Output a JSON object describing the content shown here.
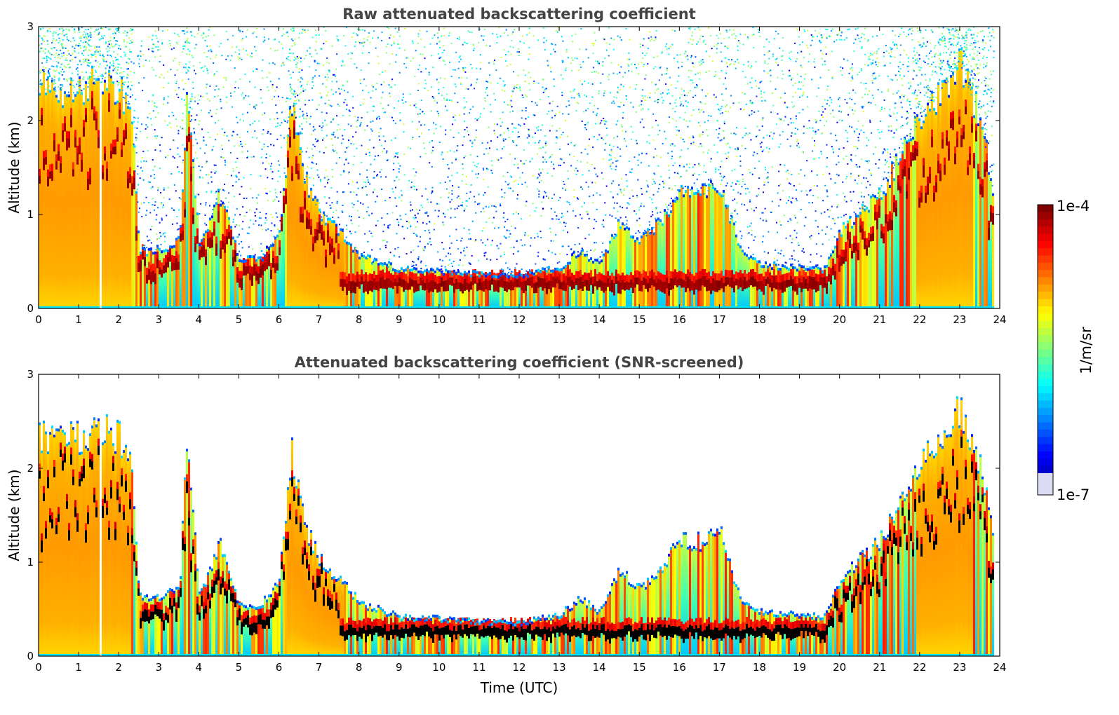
{
  "colors": {
    "jet": [
      "#00007f",
      "#0000ff",
      "#007fff",
      "#00ffff",
      "#7fff7f",
      "#ffff00",
      "#ff7f00",
      "#ff0000",
      "#7f0000"
    ],
    "low_lavender": "#dcdcf5",
    "cloud_core": "#000000",
    "title_color": "#444444",
    "frame": "#000000"
  },
  "colorbar": {
    "label": "1/m/sr",
    "max_label": "1e-4",
    "min_label": "1e-7",
    "scale": "log",
    "range": [
      1e-07,
      0.0001
    ]
  },
  "chart_data": [
    {
      "type": "heatmap",
      "title": "Raw attenuated backscattering coefficient",
      "xlabel": "",
      "ylabel": "Altitude (km)",
      "xlim": [
        0,
        24
      ],
      "ylim": [
        0,
        3
      ],
      "xticks": [
        "0",
        "1",
        "2",
        "3",
        "4",
        "5",
        "6",
        "7",
        "8",
        "9",
        "10",
        "11",
        "12",
        "13",
        "14",
        "15",
        "16",
        "17",
        "18",
        "19",
        "20",
        "21",
        "22",
        "23",
        "24"
      ],
      "yticks": [
        "0",
        "1",
        "2",
        "3"
      ],
      "grid": false,
      "noise_above_cloud": true
    },
    {
      "type": "heatmap",
      "title": "Attenuated backscattering coefficient (SNR-screened)",
      "xlabel": "Time (UTC)",
      "ylabel": "Altitude (km)",
      "xlim": [
        0,
        24
      ],
      "ylim": [
        0,
        3
      ],
      "xticks": [
        "0",
        "1",
        "2",
        "3",
        "4",
        "5",
        "6",
        "7",
        "8",
        "9",
        "10",
        "11",
        "12",
        "13",
        "14",
        "15",
        "16",
        "17",
        "18",
        "19",
        "20",
        "21",
        "22",
        "23",
        "24"
      ],
      "yticks": [
        "0",
        "1",
        "2",
        "3"
      ],
      "grid": false,
      "noise_above_cloud": false
    }
  ],
  "boundary_layer": {
    "description_units": "time (UTC hours) vs. layer top altitude (km)",
    "times": [
      0,
      0.5,
      1.0,
      1.4,
      1.6,
      2.0,
      2.3,
      2.5,
      3.0,
      3.5,
      3.7,
      4.0,
      4.5,
      5.0,
      5.5,
      6.0,
      6.3,
      6.6,
      7.0,
      7.5,
      8.0,
      9.0,
      10.0,
      11.0,
      12.0,
      12.5,
      13.0,
      13.5,
      14.0,
      14.5,
      15.0,
      15.5,
      16.0,
      16.5,
      17.0,
      17.5,
      18.0,
      19.0,
      19.6,
      20.0,
      20.5,
      21.0,
      21.5,
      22.0,
      22.5,
      23.0,
      23.5,
      23.85
    ],
    "tops": [
      2.35,
      2.3,
      2.3,
      2.4,
      2.4,
      2.3,
      2.1,
      0.6,
      0.6,
      0.7,
      2.4,
      0.6,
      1.2,
      0.5,
      0.5,
      0.8,
      2.2,
      1.4,
      1.0,
      0.8,
      0.55,
      0.4,
      0.38,
      0.35,
      0.33,
      0.38,
      0.42,
      0.6,
      0.45,
      0.9,
      0.7,
      0.9,
      1.2,
      1.2,
      1.3,
      0.6,
      0.45,
      0.42,
      0.4,
      0.8,
      1.0,
      1.2,
      1.6,
      2.0,
      2.3,
      2.6,
      2.0,
      1.2
    ]
  }
}
